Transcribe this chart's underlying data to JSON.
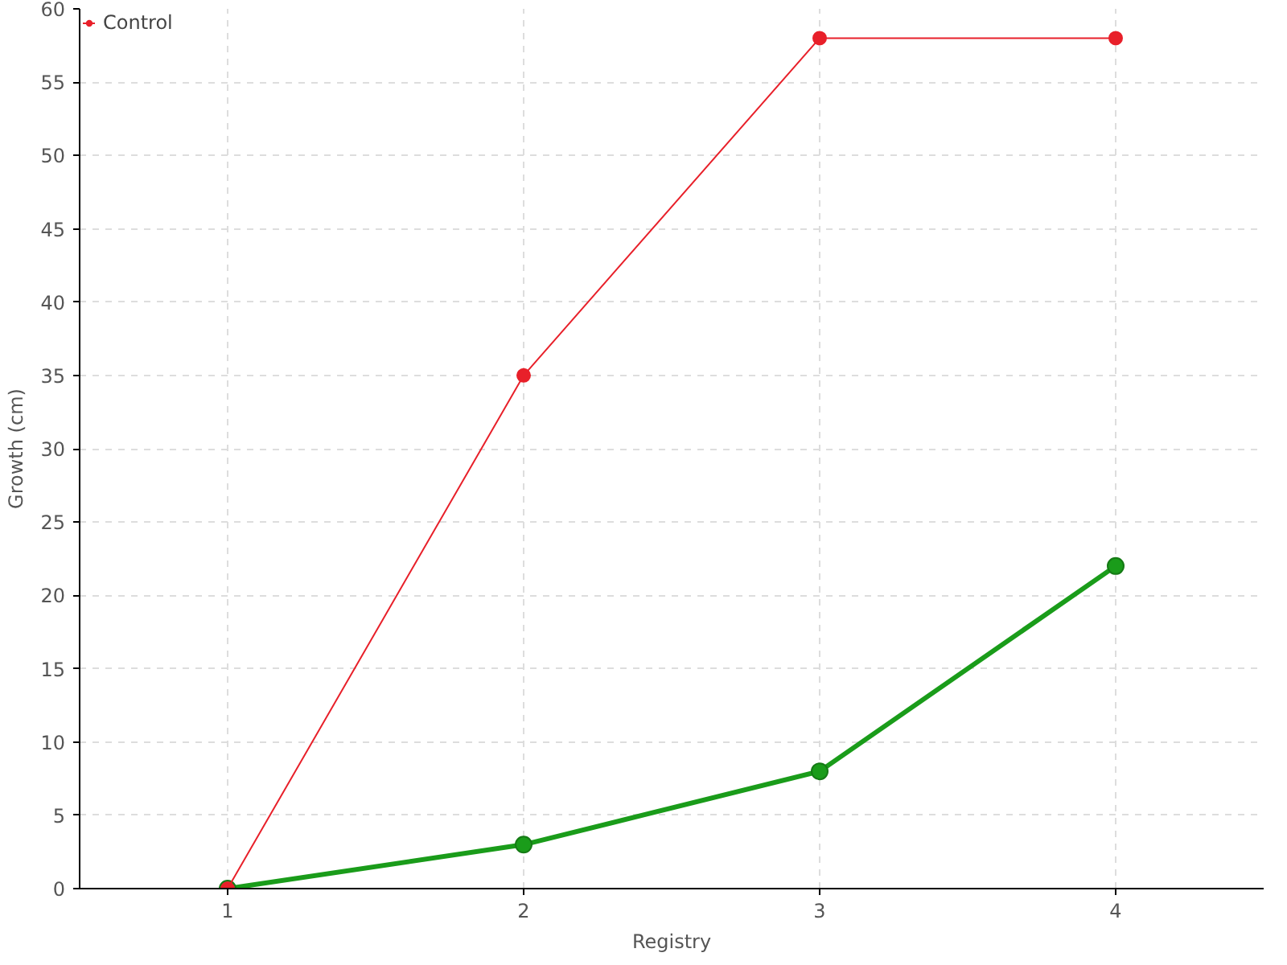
{
  "chart_data": {
    "type": "line",
    "xlabel": "Registry",
    "ylabel": "Growth (cm)",
    "x": [
      1,
      2,
      3,
      4
    ],
    "series": [
      {
        "color": "#1a9c1a",
        "values": [
          0,
          3,
          8,
          22
        ]
      },
      {
        "name": "Control",
        "color": "#e8202a",
        "values": [
          0,
          35,
          58,
          58
        ]
      }
    ],
    "xlim": [
      0.5,
      4.5
    ],
    "xticks": [
      1,
      2,
      3,
      4
    ],
    "ylim": [
      0,
      60
    ],
    "yticks": [
      0,
      5,
      10,
      15,
      20,
      25,
      30,
      35,
      40,
      45,
      50,
      55,
      60
    ],
    "grid": true,
    "legend": "top left",
    "marker": "circle",
    "line_style": "solid"
  }
}
